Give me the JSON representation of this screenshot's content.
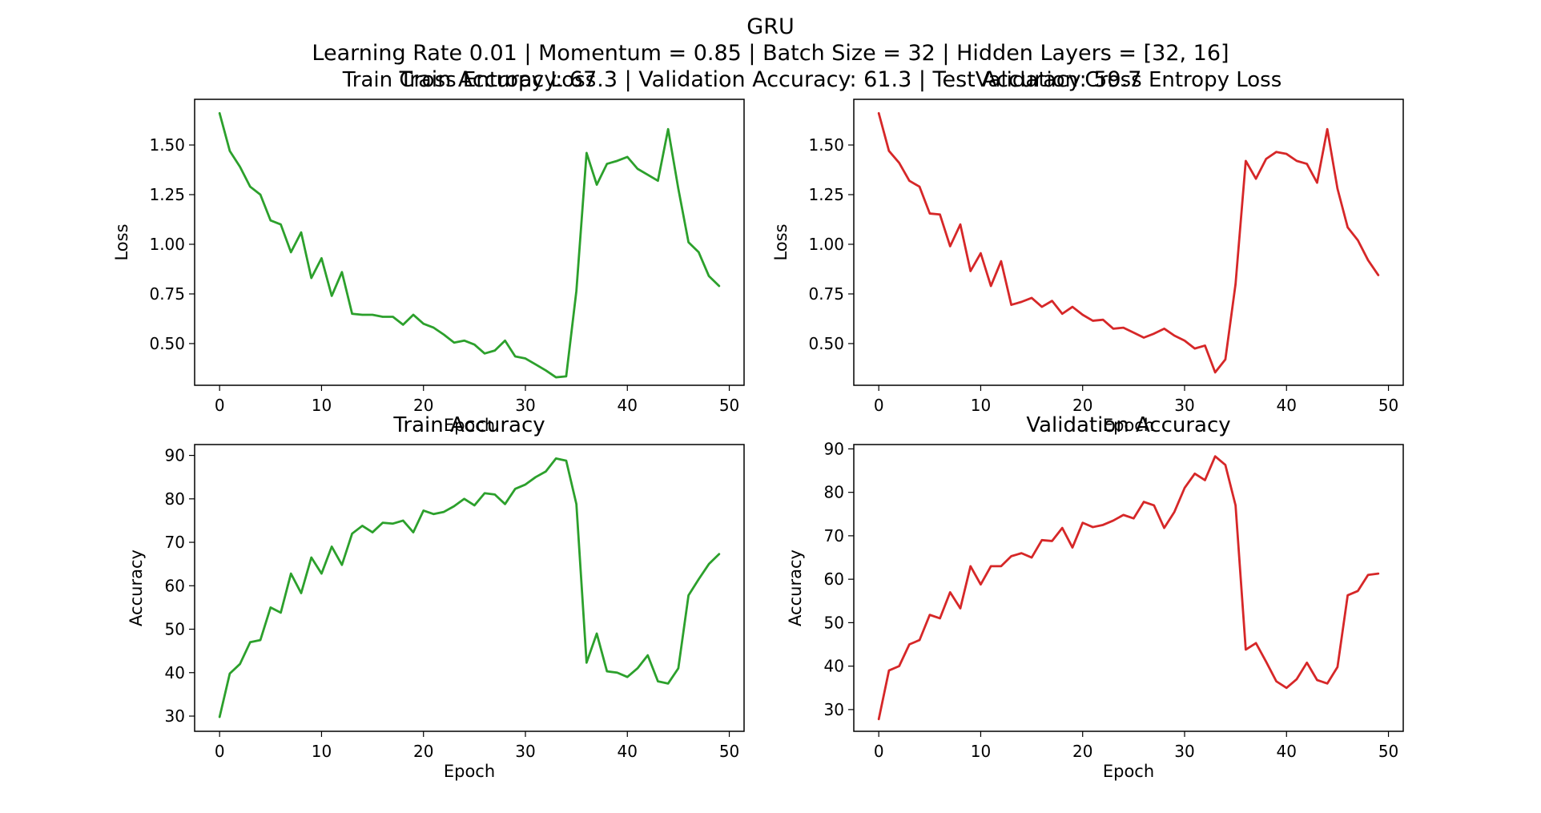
{
  "figure": {
    "title_lines": [
      "GRU",
      "Learning Rate 0.01 | Momentum = 0.85 | Batch Size  = 32 | Hidden Layers = [32, 16]",
      "Train Accuracy: 67.3 | Validation Accuracy: 61.3 | Test Accuracy: 59.7"
    ]
  },
  "colors": {
    "train": "#2ca02c",
    "validation": "#d62728"
  },
  "chart_data": [
    {
      "type": "line",
      "title": "Train Cross Entropy Loss",
      "xlabel": "Epoch",
      "ylabel": "Loss",
      "xlim": [
        -2.45,
        51.45
      ],
      "ylim": [
        0.29,
        1.73
      ],
      "xticks": [
        0,
        10,
        20,
        30,
        40,
        50
      ],
      "yticks": [
        0.5,
        0.75,
        1.0,
        1.25,
        1.5
      ],
      "ytick_labels": [
        "0.50",
        "0.75",
        "1.00",
        "1.25",
        "1.50"
      ],
      "grid": false,
      "series": [
        {
          "color": "#2ca02c",
          "x": [
            0,
            1,
            2,
            3,
            4,
            5,
            6,
            7,
            8,
            9,
            10,
            11,
            12,
            13,
            14,
            15,
            16,
            17,
            18,
            19,
            20,
            21,
            22,
            23,
            24,
            25,
            26,
            27,
            28,
            29,
            30,
            31,
            32,
            33,
            34,
            35,
            36,
            37,
            38,
            39,
            40,
            41,
            42,
            43,
            44,
            45,
            46,
            47,
            48,
            49
          ],
          "values": [
            1.66,
            1.47,
            1.39,
            1.29,
            1.25,
            1.12,
            1.1,
            0.96,
            1.06,
            0.83,
            0.93,
            0.74,
            0.86,
            0.65,
            0.645,
            0.645,
            0.635,
            0.635,
            0.595,
            0.645,
            0.6,
            0.58,
            0.545,
            0.505,
            0.515,
            0.495,
            0.45,
            0.465,
            0.515,
            0.435,
            0.425,
            0.395,
            0.365,
            0.33,
            0.335,
            0.765,
            1.46,
            1.3,
            1.405,
            1.42,
            1.44,
            1.38,
            1.35,
            1.32,
            1.58,
            1.28,
            1.01,
            0.96,
            0.84,
            0.79
          ]
        }
      ]
    },
    {
      "type": "line",
      "title": "Validation Cross Entropy Loss",
      "xlabel": "Epoch",
      "ylabel": "Loss",
      "xlim": [
        -2.45,
        51.45
      ],
      "ylim": [
        0.29,
        1.73
      ],
      "xticks": [
        0,
        10,
        20,
        30,
        40,
        50
      ],
      "yticks": [
        0.5,
        0.75,
        1.0,
        1.25,
        1.5
      ],
      "ytick_labels": [
        "0.50",
        "0.75",
        "1.00",
        "1.25",
        "1.50"
      ],
      "grid": false,
      "series": [
        {
          "color": "#d62728",
          "x": [
            0,
            1,
            2,
            3,
            4,
            5,
            6,
            7,
            8,
            9,
            10,
            11,
            12,
            13,
            14,
            15,
            16,
            17,
            18,
            19,
            20,
            21,
            22,
            23,
            24,
            25,
            26,
            27,
            28,
            29,
            30,
            31,
            32,
            33,
            34,
            35,
            36,
            37,
            38,
            39,
            40,
            41,
            42,
            43,
            44,
            45,
            46,
            47,
            48,
            49
          ],
          "values": [
            1.66,
            1.47,
            1.41,
            1.32,
            1.29,
            1.155,
            1.15,
            0.99,
            1.1,
            0.865,
            0.955,
            0.79,
            0.915,
            0.695,
            0.71,
            0.73,
            0.685,
            0.715,
            0.65,
            0.685,
            0.645,
            0.615,
            0.62,
            0.575,
            0.58,
            0.555,
            0.53,
            0.55,
            0.575,
            0.54,
            0.515,
            0.475,
            0.49,
            0.355,
            0.42,
            0.8,
            1.42,
            1.33,
            1.43,
            1.465,
            1.455,
            1.42,
            1.405,
            1.31,
            1.58,
            1.28,
            1.085,
            1.02,
            0.92,
            0.845
          ]
        }
      ]
    },
    {
      "type": "line",
      "title": "Train Accuracy",
      "xlabel": "Epoch",
      "ylabel": "Accuracy",
      "xlim": [
        -2.45,
        51.45
      ],
      "ylim": [
        26.5,
        92.5
      ],
      "xticks": [
        0,
        10,
        20,
        30,
        40,
        50
      ],
      "yticks": [
        30,
        40,
        50,
        60,
        70,
        80,
        90
      ],
      "ytick_labels": [
        "30",
        "40",
        "50",
        "60",
        "70",
        "80",
        "90"
      ],
      "grid": false,
      "series": [
        {
          "color": "#2ca02c",
          "x": [
            0,
            1,
            2,
            3,
            4,
            5,
            6,
            7,
            8,
            9,
            10,
            11,
            12,
            13,
            14,
            15,
            16,
            17,
            18,
            19,
            20,
            21,
            22,
            23,
            24,
            25,
            26,
            27,
            28,
            29,
            30,
            31,
            32,
            33,
            34,
            35,
            36,
            37,
            38,
            39,
            40,
            41,
            42,
            43,
            44,
            45,
            46,
            47,
            48,
            49
          ],
          "values": [
            29.8,
            39.8,
            42.0,
            47.0,
            47.5,
            55.0,
            53.8,
            62.8,
            58.3,
            66.5,
            62.8,
            69.0,
            64.8,
            72.0,
            73.8,
            72.3,
            74.5,
            74.3,
            75.0,
            72.3,
            77.3,
            76.5,
            77.0,
            78.3,
            80.0,
            78.5,
            81.3,
            81.0,
            78.8,
            82.3,
            83.3,
            85.0,
            86.3,
            89.3,
            88.8,
            78.8,
            42.3,
            49.0,
            40.3,
            40.0,
            39.0,
            41.0,
            44.0,
            38.0,
            37.5,
            41.0,
            57.8,
            61.5,
            65.0,
            67.3
          ]
        }
      ]
    },
    {
      "type": "line",
      "title": "Validation Accuracy",
      "xlabel": "Epoch",
      "ylabel": "Accuracy",
      "xlim": [
        -2.45,
        51.45
      ],
      "ylim": [
        25.0,
        91.0
      ],
      "xticks": [
        0,
        10,
        20,
        30,
        40,
        50
      ],
      "yticks": [
        30,
        40,
        50,
        60,
        70,
        80,
        90
      ],
      "ytick_labels": [
        "30",
        "40",
        "50",
        "60",
        "70",
        "80",
        "90"
      ],
      "grid": false,
      "series": [
        {
          "color": "#d62728",
          "x": [
            0,
            1,
            2,
            3,
            4,
            5,
            6,
            7,
            8,
            9,
            10,
            11,
            12,
            13,
            14,
            15,
            16,
            17,
            18,
            19,
            20,
            21,
            22,
            23,
            24,
            25,
            26,
            27,
            28,
            29,
            30,
            31,
            32,
            33,
            34,
            35,
            36,
            37,
            38,
            39,
            40,
            41,
            42,
            43,
            44,
            45,
            46,
            47,
            48,
            49
          ],
          "values": [
            27.8,
            39.0,
            40.0,
            45.0,
            46.0,
            51.8,
            51.0,
            57.0,
            53.3,
            63.0,
            58.8,
            63.0,
            63.0,
            65.3,
            66.0,
            65.0,
            69.0,
            68.8,
            71.8,
            67.3,
            73.0,
            72.0,
            72.5,
            73.5,
            74.8,
            74.0,
            77.8,
            77.0,
            71.8,
            75.5,
            81.0,
            84.3,
            82.8,
            88.3,
            86.3,
            77.0,
            43.8,
            45.3,
            41.0,
            36.5,
            35.0,
            37.0,
            40.8,
            36.8,
            36.0,
            39.8,
            56.3,
            57.3,
            61.0,
            61.3
          ]
        }
      ]
    }
  ]
}
